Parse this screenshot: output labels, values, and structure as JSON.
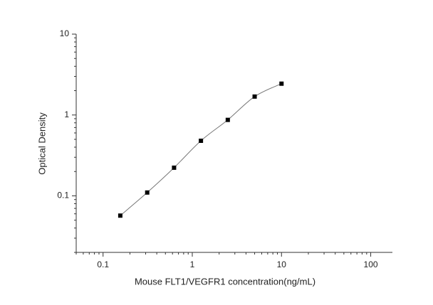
{
  "chart_data": {
    "type": "scatter",
    "xlabel": "Mouse FLT1/VEGFR1 concentration(ng/mL)",
    "ylabel": "Optical Density",
    "xscale": "log",
    "yscale": "log",
    "xlim": [
      0.05,
      175
    ],
    "ylim": [
      0.02,
      10
    ],
    "xticks": [
      0.1,
      1,
      10,
      100
    ],
    "yticks": [
      0.1,
      1,
      10
    ],
    "xminorticks": [
      0.05,
      0.06,
      0.07,
      0.08,
      0.09,
      0.2,
      0.3,
      0.4,
      0.5,
      0.6,
      0.7,
      0.8,
      0.9,
      2,
      3,
      4,
      5,
      6,
      7,
      8,
      9,
      20,
      30,
      40,
      50,
      60,
      70,
      80,
      90
    ],
    "yminorticks": [
      0.02,
      0.03,
      0.04,
      0.05,
      0.06,
      0.07,
      0.08,
      0.09,
      0.2,
      0.3,
      0.4,
      0.5,
      0.6,
      0.7,
      0.8,
      0.9,
      2,
      3,
      4,
      5,
      6,
      7,
      8,
      9
    ],
    "fit_curve": true,
    "curve_color": "#777777",
    "series": [
      {
        "color": "#000000",
        "x": [
          0.156,
          0.3125,
          0.625,
          1.25,
          2.5,
          5,
          10
        ],
        "values": [
          0.057,
          0.11,
          0.223,
          0.48,
          0.87,
          1.69,
          2.44
        ]
      }
    ]
  }
}
